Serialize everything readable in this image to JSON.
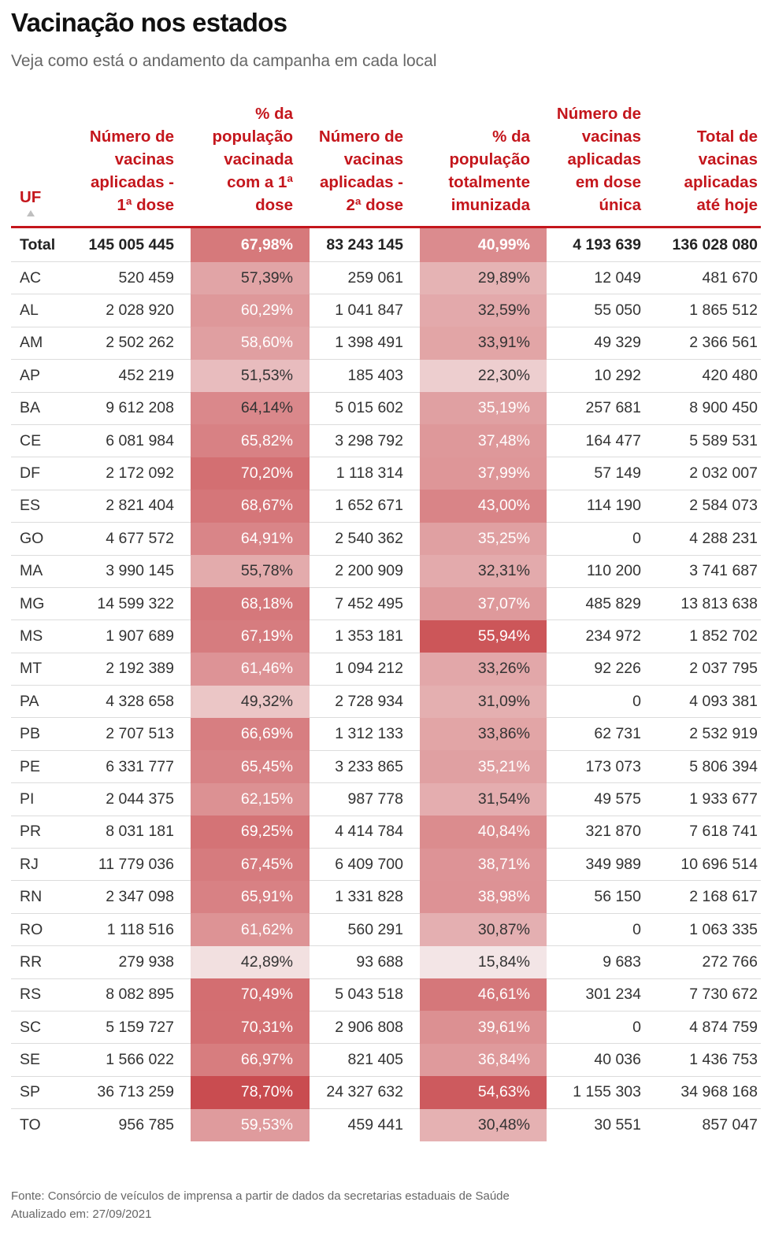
{
  "title": "Vacinação nos estados",
  "subtitle": "Veja como está o andamento da campanha em cada local",
  "colors": {
    "accent": "#c4161c",
    "heat_low": "#f5ecec",
    "heat_high": "#c8474b"
  },
  "icons": {
    "sort": "sort-up-triangle-icon"
  },
  "table": {
    "headers": [
      "UF",
      "Número de vacinas aplicadas - 1ª dose",
      "% da população vacinada com a 1ª dose",
      "Número de vacinas aplicadas - 2ª dose",
      "% da população totalmente imunizada",
      "Número de vacinas aplicadas em dose única",
      "Total de vacinas aplicadas até hoje"
    ],
    "rows": [
      [
        "Total",
        "145 005 445",
        "67,98%",
        "83 243 145",
        "40,99%",
        "4 193 639",
        "136 028 080"
      ],
      [
        "AC",
        "520 459",
        "57,39%",
        "259 061",
        "29,89%",
        "12 049",
        "481 670"
      ],
      [
        "AL",
        "2 028 920",
        "60,29%",
        "1 041 847",
        "32,59%",
        "55 050",
        "1 865 512"
      ],
      [
        "AM",
        "2 502 262",
        "58,60%",
        "1 398 491",
        "33,91%",
        "49 329",
        "2 366 561"
      ],
      [
        "AP",
        "452 219",
        "51,53%",
        "185 403",
        "22,30%",
        "10 292",
        "420 480"
      ],
      [
        "BA",
        "9 612 208",
        "64,14%",
        "5 015 602",
        "35,19%",
        "257 681",
        "8 900 450"
      ],
      [
        "CE",
        "6 081 984",
        "65,82%",
        "3 298 792",
        "37,48%",
        "164 477",
        "5 589 531"
      ],
      [
        "DF",
        "2 172 092",
        "70,20%",
        "1 118 314",
        "37,99%",
        "57 149",
        "2 032 007"
      ],
      [
        "ES",
        "2 821 404",
        "68,67%",
        "1 652 671",
        "43,00%",
        "114 190",
        "2 584 073"
      ],
      [
        "GO",
        "4 677 572",
        "64,91%",
        "2 540 362",
        "35,25%",
        "0",
        "4 288 231"
      ],
      [
        "MA",
        "3 990 145",
        "55,78%",
        "2 200 909",
        "32,31%",
        "110 200",
        "3 741 687"
      ],
      [
        "MG",
        "14 599 322",
        "68,18%",
        "7 452 495",
        "37,07%",
        "485 829",
        "13 813 638"
      ],
      [
        "MS",
        "1 907 689",
        "67,19%",
        "1 353 181",
        "55,94%",
        "234 972",
        "1 852 702"
      ],
      [
        "MT",
        "2 192 389",
        "61,46%",
        "1 094 212",
        "33,26%",
        "92 226",
        "2 037 795"
      ],
      [
        "PA",
        "4 328 658",
        "49,32%",
        "2 728 934",
        "31,09%",
        "0",
        "4 093 381"
      ],
      [
        "PB",
        "2 707 513",
        "66,69%",
        "1 312 133",
        "33,86%",
        "62 731",
        "2 532 919"
      ],
      [
        "PE",
        "6 331 777",
        "65,45%",
        "3 233 865",
        "35,21%",
        "173 073",
        "5 806 394"
      ],
      [
        "PI",
        "2 044 375",
        "62,15%",
        "987 778",
        "31,54%",
        "49 575",
        "1 933 677"
      ],
      [
        "PR",
        "8 031 181",
        "69,25%",
        "4 414 784",
        "40,84%",
        "321 870",
        "7 618 741"
      ],
      [
        "RJ",
        "11 779 036",
        "67,45%",
        "6 409 700",
        "38,71%",
        "349 989",
        "10 696 514"
      ],
      [
        "RN",
        "2 347 098",
        "65,91%",
        "1 331 828",
        "38,98%",
        "56 150",
        "2 168 617"
      ],
      [
        "RO",
        "1 118 516",
        "61,62%",
        "560 291",
        "30,87%",
        "0",
        "1 063 335"
      ],
      [
        "RR",
        "279 938",
        "42,89%",
        "93 688",
        "15,84%",
        "9 683",
        "272 766"
      ],
      [
        "RS",
        "8 082 895",
        "70,49%",
        "5 043 518",
        "46,61%",
        "301 234",
        "7 730 672"
      ],
      [
        "SC",
        "5 159 727",
        "70,31%",
        "2 906 808",
        "39,61%",
        "0",
        "4 874 759"
      ],
      [
        "SE",
        "1 566 022",
        "66,97%",
        "821 405",
        "36,84%",
        "40 036",
        "1 436 753"
      ],
      [
        "SP",
        "36 713 259",
        "78,70%",
        "24 327 632",
        "54,63%",
        "1 155 303",
        "34 968 168"
      ],
      [
        "TO",
        "956 785",
        "59,53%",
        "459 441",
        "30,48%",
        "30 551",
        "857 047"
      ]
    ]
  },
  "footer": {
    "source": "Fonte: Consórcio de veículos de imprensa a partir de dados da secretarias estaduais de Saúde",
    "updated": "Atualizado em: 27/09/2021"
  }
}
